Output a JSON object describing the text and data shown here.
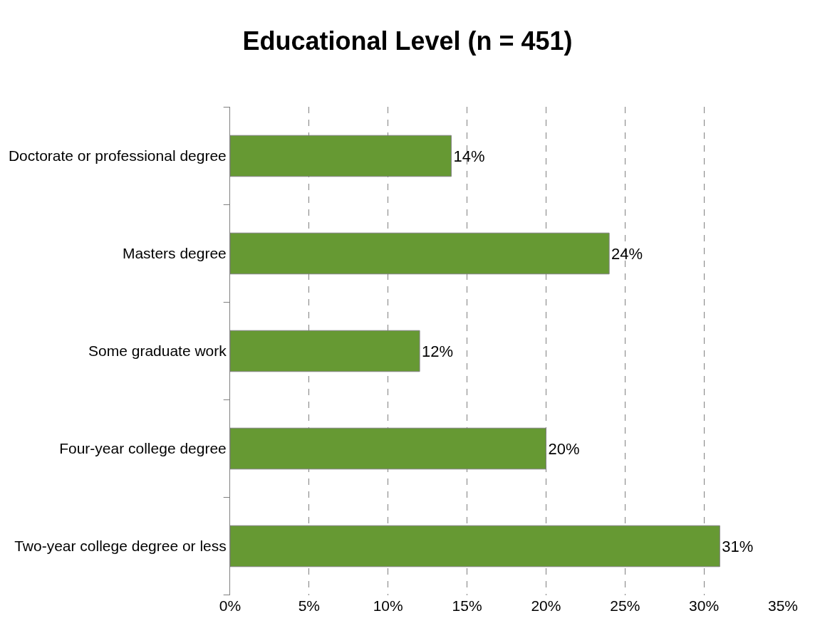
{
  "chart_data": {
    "type": "bar",
    "orientation": "horizontal",
    "title": "Educational Level (n = 451)",
    "categories": [
      "Doctorate or professional degree",
      "Masters degree",
      "Some graduate work",
      "Four-year college degree",
      "Two-year college degree or less"
    ],
    "values": [
      14,
      24,
      12,
      20,
      31
    ],
    "value_labels": [
      "14%",
      "24%",
      "12%",
      "20%",
      "31%"
    ],
    "color": "#669933",
    "xlim": [
      0,
      35
    ],
    "xticks": [
      {
        "value": 0,
        "label": "0%"
      },
      {
        "value": 5,
        "label": "5%"
      },
      {
        "value": 10,
        "label": "10%"
      },
      {
        "value": 15,
        "label": "15%"
      },
      {
        "value": 20,
        "label": "20%"
      },
      {
        "value": 25,
        "label": "25%"
      },
      {
        "value": 30,
        "label": "30%"
      },
      {
        "value": 35,
        "label": "35%"
      }
    ],
    "grid": "x",
    "line_style": "dashed",
    "legend": false
  }
}
